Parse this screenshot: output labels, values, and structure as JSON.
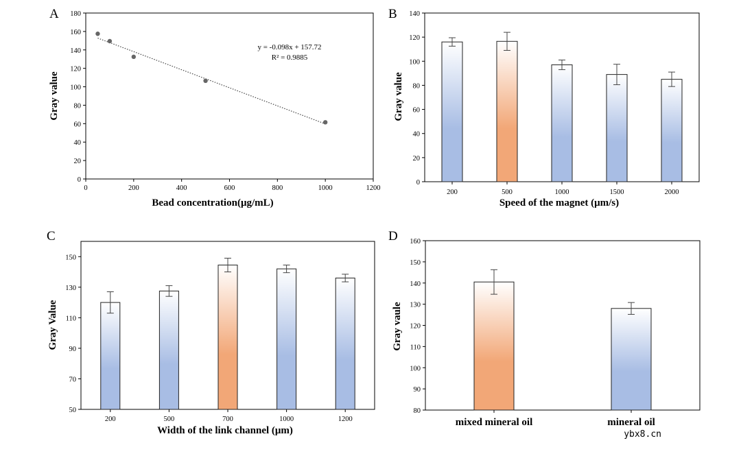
{
  "chart_data": [
    {
      "panel": "A",
      "type": "scatter",
      "x": [
        50,
        100,
        200,
        500,
        1000
      ],
      "y": [
        157.5,
        149.5,
        132.5,
        106.5,
        61.5
      ],
      "xlabel": "Bead concentration(μg/mL)",
      "ylabel": "Gray value",
      "xlim": [
        0,
        1200
      ],
      "ylim": [
        0,
        180
      ],
      "xticks": [
        0,
        200,
        400,
        600,
        800,
        1000,
        1200
      ],
      "yticks": [
        0,
        20,
        40,
        60,
        80,
        100,
        120,
        140,
        160,
        180
      ],
      "trendline": {
        "slope": -0.098,
        "intercept": 157.72,
        "x_range": [
          50,
          1000
        ]
      },
      "annotations": [
        "y = -0.098x + 157.72",
        "R² = 0.9885"
      ],
      "point_color": "#666666"
    },
    {
      "panel": "B",
      "type": "bar",
      "categories": [
        "200",
        "500",
        "1000",
        "1500",
        "2000"
      ],
      "values": [
        116,
        116.5,
        97,
        89,
        85
      ],
      "errors": [
        3.5,
        7.5,
        4,
        8.5,
        6
      ],
      "highlight": [
        false,
        true,
        false,
        false,
        false
      ],
      "xlabel": "Speed of the magnet  (μm/s)",
      "ylabel": "Gray value",
      "ylim": [
        0,
        140
      ],
      "yticks": [
        0,
        20,
        40,
        60,
        80,
        100,
        120,
        140
      ]
    },
    {
      "panel": "C",
      "type": "bar",
      "categories": [
        "200",
        "500",
        "700",
        "1000",
        "1200"
      ],
      "values": [
        120,
        127.5,
        144.5,
        142,
        136
      ],
      "errors": [
        7,
        3.5,
        4.5,
        2.5,
        2.5
      ],
      "highlight": [
        false,
        false,
        true,
        false,
        false
      ],
      "xlabel": "Width of the link channel (μm)",
      "ylabel": "Gray Value",
      "ylim": [
        50,
        160
      ],
      "yticks": [
        50,
        70,
        90,
        110,
        130,
        150
      ]
    },
    {
      "panel": "D",
      "type": "bar",
      "categories": [
        "mixed mineral oil",
        "mineral oil"
      ],
      "values": [
        140.5,
        128
      ],
      "errors": [
        5.8,
        2.8
      ],
      "highlight": [
        true,
        false
      ],
      "xlabel": "",
      "ylabel": "Gray vaule",
      "ylim": [
        80,
        160
      ],
      "yticks": [
        80,
        90,
        100,
        110,
        120,
        130,
        140,
        150,
        160
      ]
    }
  ],
  "colors": {
    "blue": "#a8bde4",
    "orange": "#f2a777",
    "top": "#ffffff",
    "axis": "#000000"
  },
  "watermark": "ybx8.cn"
}
